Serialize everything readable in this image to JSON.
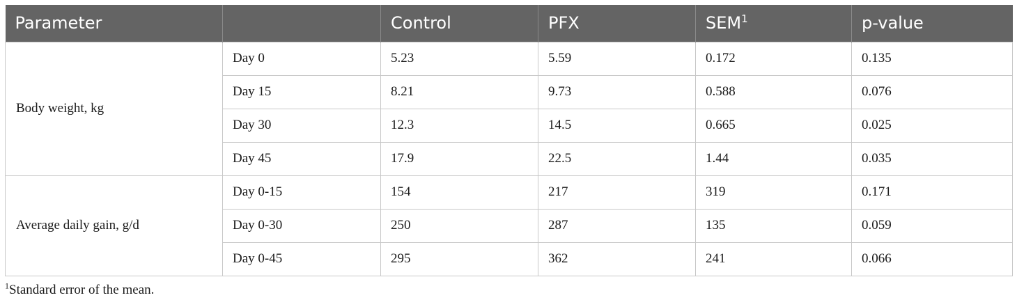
{
  "table": {
    "headers": [
      "Parameter",
      "",
      "Control",
      "PFX",
      "SEM",
      "p-value"
    ],
    "sem_superscript": "1",
    "groups": [
      {
        "parameter": "Body weight, kg",
        "rows": [
          {
            "period": "Day 0",
            "control": "5.23",
            "pfx": "5.59",
            "sem": "0.172",
            "p": "0.135"
          },
          {
            "period": "Day 15",
            "control": "8.21",
            "pfx": "9.73",
            "sem": "0.588",
            "p": "0.076"
          },
          {
            "period": "Day 30",
            "control": "12.3",
            "pfx": "14.5",
            "sem": "0.665",
            "p": "0.025"
          },
          {
            "period": "Day 45",
            "control": "17.9",
            "pfx": "22.5",
            "sem": "1.44",
            "p": "0.035"
          }
        ]
      },
      {
        "parameter": "Average daily gain, g/d",
        "rows": [
          {
            "period": "Day 0-15",
            "control": "154",
            "pfx": "217",
            "sem": "319",
            "p": "0.171"
          },
          {
            "period": "Day 0-30",
            "control": "250",
            "pfx": "287",
            "sem": "135",
            "p": "0.059"
          },
          {
            "period": "Day 0-45",
            "control": "295",
            "pfx": "362",
            "sem": "241",
            "p": "0.066"
          }
        ]
      }
    ]
  },
  "footnote": {
    "marker": "1",
    "text": "Standard error of the mean."
  },
  "colors": {
    "header_background": "#646464",
    "header_text": "#ffffff",
    "grid_line": "#c8c8c8"
  }
}
